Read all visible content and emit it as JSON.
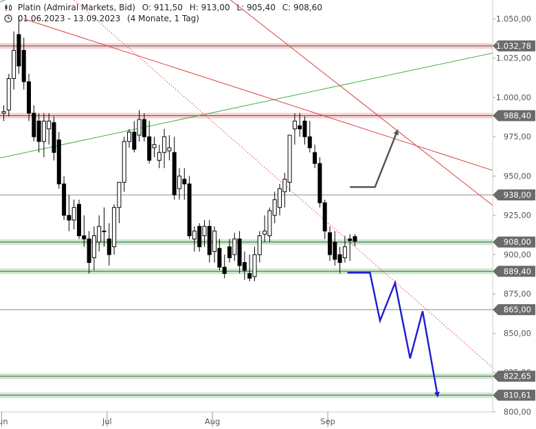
{
  "header": {
    "instrument": "Platin (Admiral Markets, Bid)",
    "open": "O: 911,50",
    "high": "H: 913,00",
    "low": "L: 905,40",
    "close": "C: 908,60",
    "range": "01.06.2023 - 13.09.2023",
    "period": "(4 Monate, 1 Tag)"
  },
  "chart_data": {
    "type": "candlestick",
    "title": "Platin (Admiral Markets, Bid)",
    "ylim": [
      800,
      1062
    ],
    "y_ticks": [
      "800,00",
      "825,00",
      "850,00",
      "875,00",
      "900,00",
      "925,00",
      "950,00",
      "975,00",
      "1.000,00",
      "1.025,00",
      "1.050,00"
    ],
    "x_ticks": [
      {
        "label": "Jun",
        "day": 0
      },
      {
        "label": "Jul",
        "day": 21
      },
      {
        "label": "Aug",
        "day": 42
      },
      {
        "label": "Sep",
        "day": 65
      }
    ],
    "candles": [
      [
        990,
        995,
        985,
        991
      ],
      [
        992,
        1015,
        988,
        1012
      ],
      [
        1012,
        1042,
        1005,
        1030
      ],
      [
        1040,
        1052,
        1015,
        1020
      ],
      [
        1030,
        1038,
        1005,
        1010
      ],
      [
        1010,
        1015,
        985,
        990
      ],
      [
        990,
        995,
        972,
        975
      ],
      [
        985,
        990,
        965,
        972
      ],
      [
        972,
        990,
        962,
        985
      ],
      [
        980,
        990,
        970,
        985
      ],
      [
        984,
        988,
        960,
        965
      ],
      [
        973,
        978,
        942,
        945
      ],
      [
        945,
        950,
        922,
        925
      ],
      [
        925,
        938,
        915,
        922
      ],
      [
        922,
        935,
        916,
        930
      ],
      [
        932,
        935,
        910,
        912
      ],
      [
        912,
        925,
        905,
        910
      ],
      [
        910,
        915,
        888,
        895
      ],
      [
        898,
        918,
        890,
        912
      ],
      [
        908,
        925,
        902,
        918
      ],
      [
        915,
        930,
        905,
        915
      ],
      [
        910,
        920,
        893,
        900
      ],
      [
        905,
        932,
        900,
        930
      ],
      [
        930,
        945,
        920,
        946
      ],
      [
        946,
        975,
        940,
        972
      ],
      [
        972,
        980,
        968,
        978
      ],
      [
        978,
        985,
        965,
        967
      ],
      [
        976,
        992,
        972,
        986
      ],
      [
        986,
        990,
        972,
        975
      ],
      [
        975,
        985,
        958,
        960
      ],
      [
        968,
        975,
        962,
        970
      ],
      [
        960,
        970,
        955,
        965
      ],
      [
        965,
        980,
        955,
        975
      ],
      [
        966,
        976,
        960,
        968
      ],
      [
        965,
        975,
        935,
        938
      ],
      [
        942,
        955,
        935,
        950
      ],
      [
        948,
        955,
        935,
        945
      ],
      [
        945,
        950,
        910,
        912
      ],
      [
        910,
        918,
        902,
        915
      ],
      [
        918,
        920,
        902,
        905
      ],
      [
        912,
        922,
        905,
        918
      ],
      [
        918,
        922,
        895,
        900
      ],
      [
        902,
        918,
        895,
        915
      ],
      [
        904,
        910,
        890,
        892
      ],
      [
        892,
        900,
        885,
        888
      ],
      [
        905,
        910,
        895,
        898
      ],
      [
        900,
        914,
        896,
        910
      ],
      [
        910,
        915,
        888,
        893
      ],
      [
        895,
        902,
        884,
        890
      ],
      [
        888,
        900,
        883,
        885
      ],
      [
        886,
        905,
        883,
        900
      ],
      [
        900,
        915,
        895,
        912
      ],
      [
        913,
        925,
        908,
        915
      ],
      [
        912,
        930,
        908,
        928
      ],
      [
        925,
        940,
        920,
        935
      ],
      [
        930,
        945,
        925,
        942
      ],
      [
        940,
        952,
        930,
        948
      ],
      [
        946,
        975,
        940,
        976
      ],
      [
        980,
        990,
        970,
        985
      ],
      [
        982,
        990,
        975,
        980
      ],
      [
        985,
        988,
        970,
        975
      ],
      [
        975,
        985,
        965,
        968
      ],
      [
        965,
        970,
        955,
        958
      ],
      [
        958,
        962,
        930,
        933
      ],
      [
        933,
        935,
        910,
        915
      ],
      [
        914,
        918,
        896,
        900
      ],
      [
        908,
        915,
        893,
        897
      ],
      [
        900,
        905,
        888,
        895
      ],
      [
        898,
        912,
        895,
        905
      ],
      [
        910,
        913,
        896,
        909
      ],
      [
        911.5,
        913,
        905.4,
        908.6
      ]
    ],
    "price_tags": [
      "1.032,78",
      "988,40",
      "938,00",
      "908,00",
      "889,40",
      "865,00",
      "822,65",
      "810,61"
    ],
    "horizontal_lines": [
      {
        "value": 1032.78,
        "band": true,
        "color": "#e05555"
      },
      {
        "value": 988.4,
        "band": true,
        "color": "#e05555"
      },
      {
        "value": 938.0,
        "band": false,
        "color": "#888888"
      },
      {
        "value": 908.0,
        "band": true,
        "color": "#3cb043"
      },
      {
        "value": 889.4,
        "band": true,
        "color": "#3cb043"
      },
      {
        "value": 865.0,
        "band": false,
        "color": "#888888"
      },
      {
        "value": 822.65,
        "band": true,
        "color": "#3cb043"
      },
      {
        "value": 810.61,
        "band": true,
        "color": "#3cb043"
      }
    ],
    "trend_lines": [
      {
        "from": [
          -3,
          1058
        ],
        "to": [
          5,
          1068
        ],
        "color": "#3cb043",
        "style": "solid"
      },
      {
        "from": [
          -3,
          960
        ],
        "to": [
          100,
          1030
        ],
        "color": "#3cb043",
        "style": "solid"
      },
      {
        "from": [
          4,
          1050
        ],
        "to": [
          100,
          951
        ],
        "color": "#d94040",
        "style": "solid"
      },
      {
        "from": [
          38,
          1080
        ],
        "to": [
          100,
          925
        ],
        "color": "#d94040",
        "style": "solid"
      },
      {
        "from": [
          14,
          1062
        ],
        "to": [
          100,
          821
        ],
        "color": "#d94040",
        "style": "dotted"
      }
    ],
    "projections": [
      {
        "color": "#555555",
        "points": [
          [
            69,
            943
          ],
          [
            74,
            943
          ],
          [
            78.5,
            979
          ]
        ],
        "arrow": true
      },
      {
        "color": "#1f1fcf",
        "points": [
          [
            68.5,
            888.5
          ],
          [
            73,
            888.5
          ],
          [
            75,
            858
          ],
          [
            78,
            882
          ],
          [
            81,
            834
          ],
          [
            83.5,
            864
          ],
          [
            86.5,
            810
          ]
        ],
        "arrow": true
      }
    ]
  }
}
